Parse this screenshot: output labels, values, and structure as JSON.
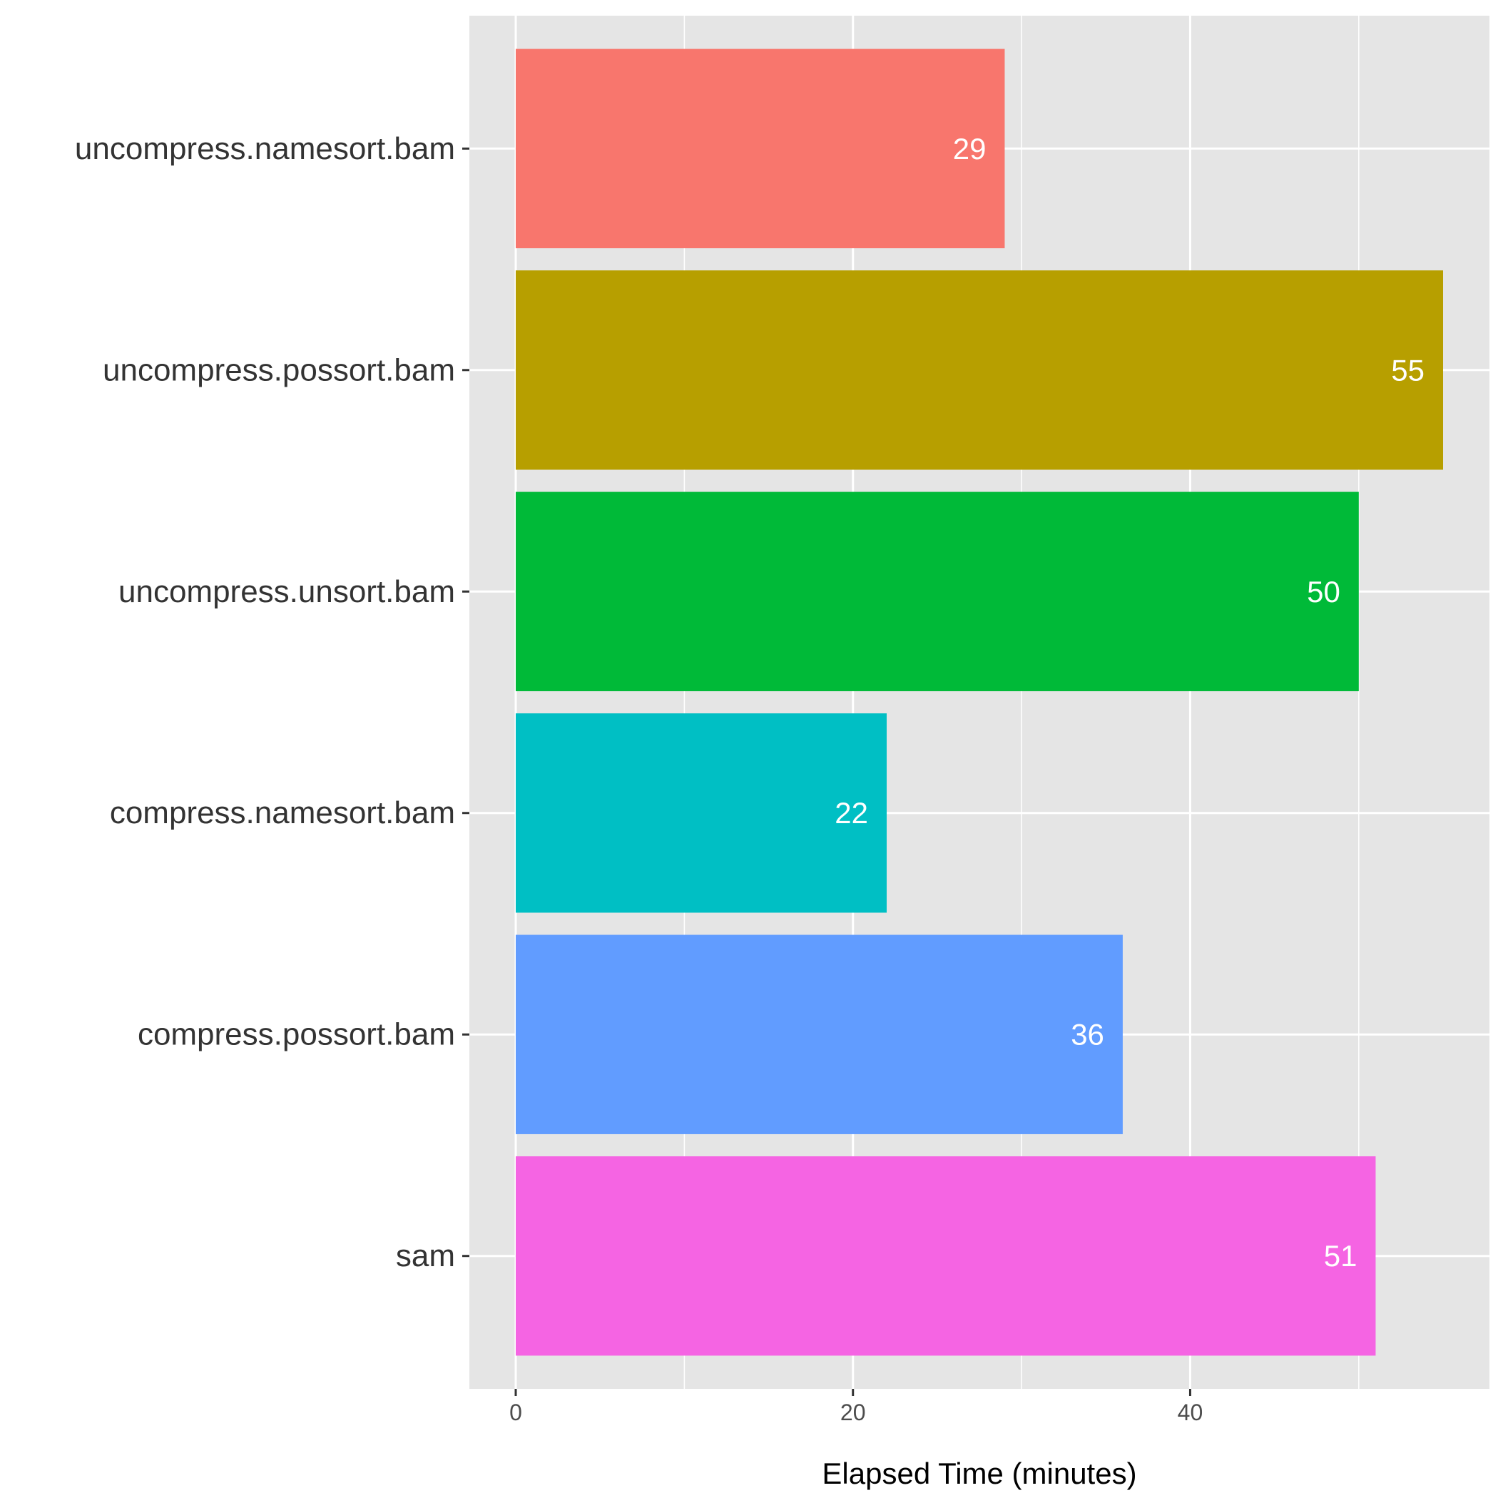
{
  "chart_data": {
    "type": "bar",
    "orientation": "horizontal",
    "categories": [
      "uncompress.namesort.bam",
      "uncompress.possort.bam",
      "uncompress.unsort.bam",
      "compress.namesort.bam",
      "compress.possort.bam",
      "sam"
    ],
    "values": [
      29,
      55,
      50,
      22,
      36,
      51
    ],
    "data_labels": [
      "29",
      "55",
      "50",
      "22",
      "36",
      "51"
    ],
    "colors": [
      "#F8766D",
      "#B79F00",
      "#00BA38",
      "#00BFC4",
      "#619CFF",
      "#F564E3"
    ],
    "title": "",
    "xlabel": "Elapsed Time (minutes)",
    "ylabel": "",
    "xlim": [
      -2.75,
      57.75
    ],
    "xticks": [
      0,
      20,
      40
    ],
    "xtick_labels": [
      "0",
      "20",
      "40"
    ],
    "minor_gridlines": [
      10,
      30,
      50
    ],
    "grid": true,
    "legend": "none",
    "panel_background": "#E5E5E5",
    "gridline_color": "#FFFFFF"
  }
}
